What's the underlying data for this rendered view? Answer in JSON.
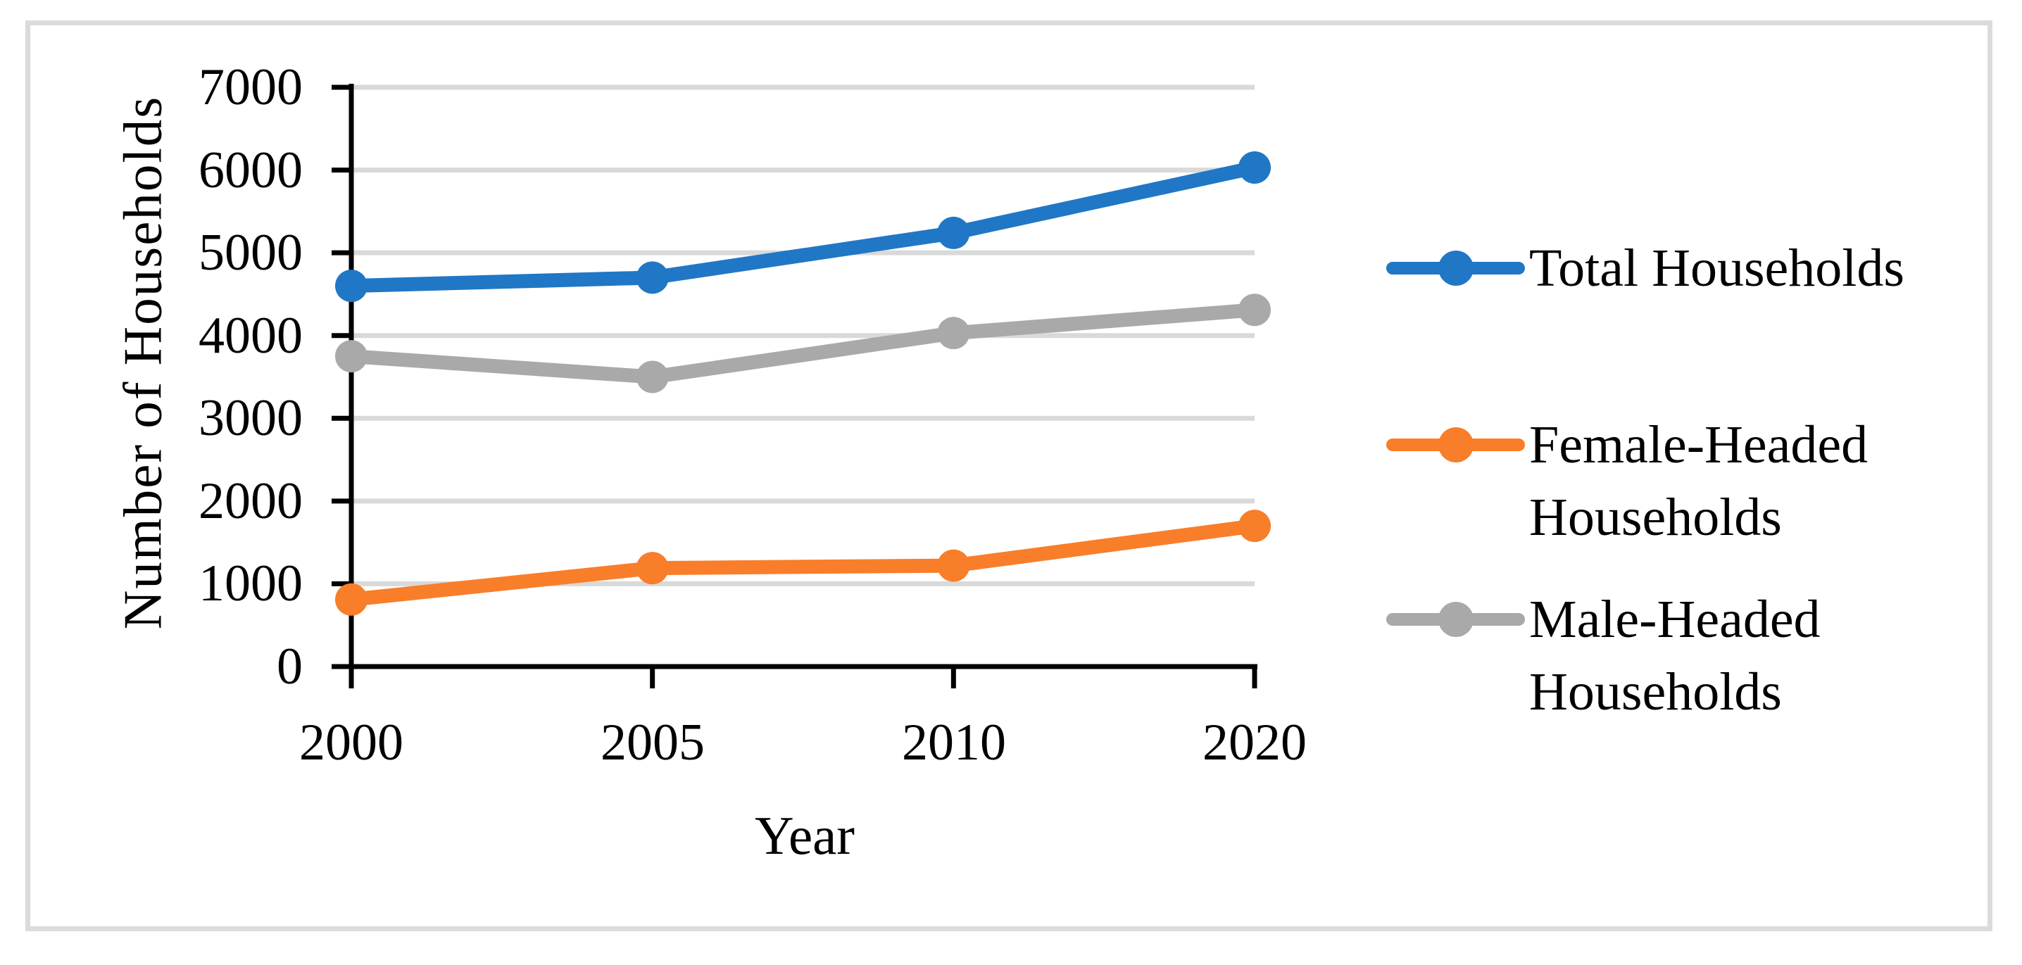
{
  "figure": {
    "background": "#FFFFFF",
    "border_color": "#DBDBDB"
  },
  "chart_data": {
    "type": "line",
    "title": "",
    "xlabel": "Year",
    "ylabel": "Number of Households",
    "categories": [
      "2000",
      "2005",
      "2010",
      "2020"
    ],
    "x_labels": [
      "2000",
      "2005",
      "2010",
      "2020"
    ],
    "y_tick_labels": [
      "0",
      "1000",
      "2000",
      "3000",
      "4000",
      "5000",
      "6000",
      "7000"
    ],
    "ylim": [
      0,
      7000
    ],
    "y_tick_step": 1000,
    "grid": "horizontal",
    "gridline_color": "#D9D9D9",
    "axis_color": "#000000",
    "legend_position": "right",
    "marker_style": "circle-on-line",
    "series": [
      {
        "name": "Total Households",
        "legend_lines": [
          "Total Households"
        ],
        "color": "#2077C5",
        "values": [
          4600,
          4700,
          5240,
          6030
        ]
      },
      {
        "name": "Female-Headed Households",
        "legend_lines": [
          "Female-Headed",
          "Households"
        ],
        "color": "#F87E2A",
        "values": [
          810,
          1190,
          1220,
          1700
        ]
      },
      {
        "name": "Male-Headed Households",
        "legend_lines": [
          "Male-Headed",
          "Households"
        ],
        "color": "#A9A9A9",
        "values": [
          3750,
          3500,
          4030,
          4310
        ]
      }
    ]
  }
}
